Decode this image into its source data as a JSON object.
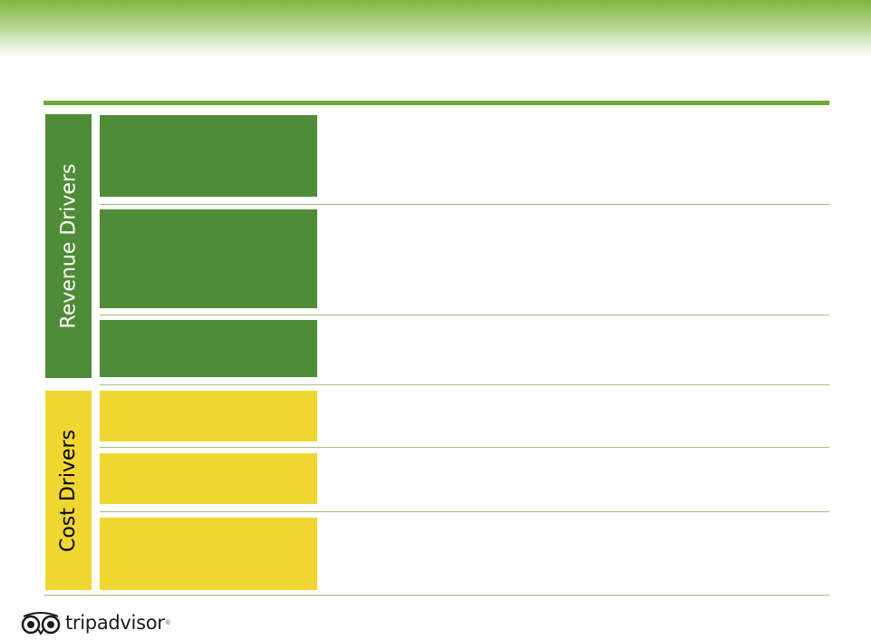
{
  "sections": {
    "revenue": {
      "label": "Revenue Drivers"
    },
    "cost": {
      "label": "Cost Drivers"
    }
  },
  "logo": {
    "text": "tripadvisor",
    "mark": "®"
  },
  "colors": {
    "header_green": "#7fb53f",
    "revenue_green": "#4f8c37",
    "cost_yellow": "#f1d631",
    "rule_green": "#6cab35",
    "divider_green": "#9cc77a"
  },
  "icons": [
    "tripadvisor-owl-icon"
  ]
}
